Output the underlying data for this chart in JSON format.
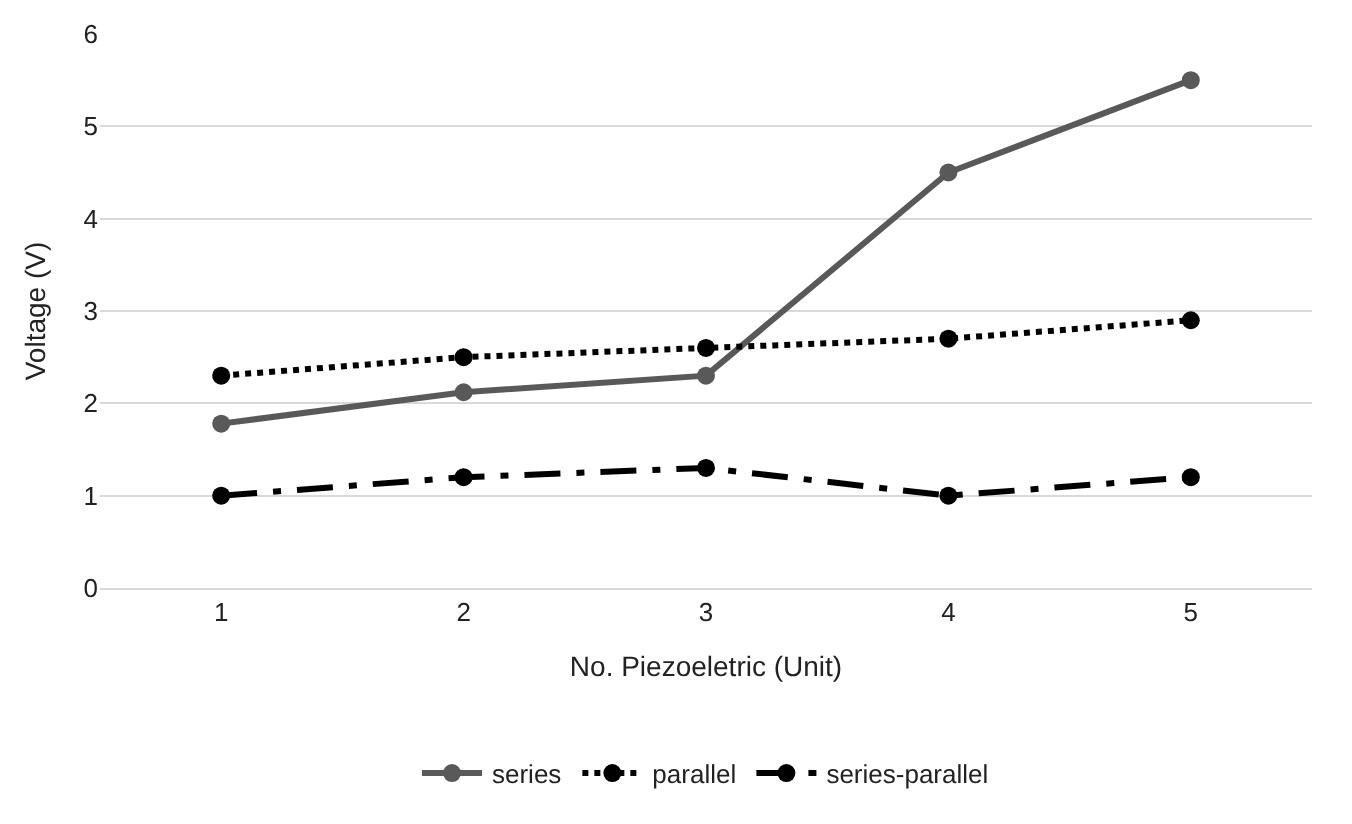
{
  "chart_data": {
    "type": "line",
    "xlabel": "No. Piezoeletric (Unit)",
    "ylabel": "Voltage (V)",
    "categories": [
      "1",
      "2",
      "3",
      "4",
      "5"
    ],
    "series": [
      {
        "name": "series",
        "color": "#595959",
        "values": [
          1.78,
          2.12,
          2.3,
          4.5,
          5.5
        ],
        "line_style": "solid"
      },
      {
        "name": "parallel",
        "color": "#000000",
        "values": [
          2.3,
          2.5,
          2.6,
          2.7,
          2.9
        ],
        "line_style": "dotted"
      },
      {
        "name": "series-parallel",
        "color": "#000000",
        "values": [
          1.0,
          1.2,
          1.3,
          1.0,
          1.2
        ],
        "line_style": "dashed"
      }
    ],
    "ylim": [
      0,
      6
    ],
    "yticks": [
      0,
      1,
      2,
      3,
      4,
      5,
      6
    ],
    "grid": "y",
    "legend": "bottom",
    "marker": "circle"
  }
}
